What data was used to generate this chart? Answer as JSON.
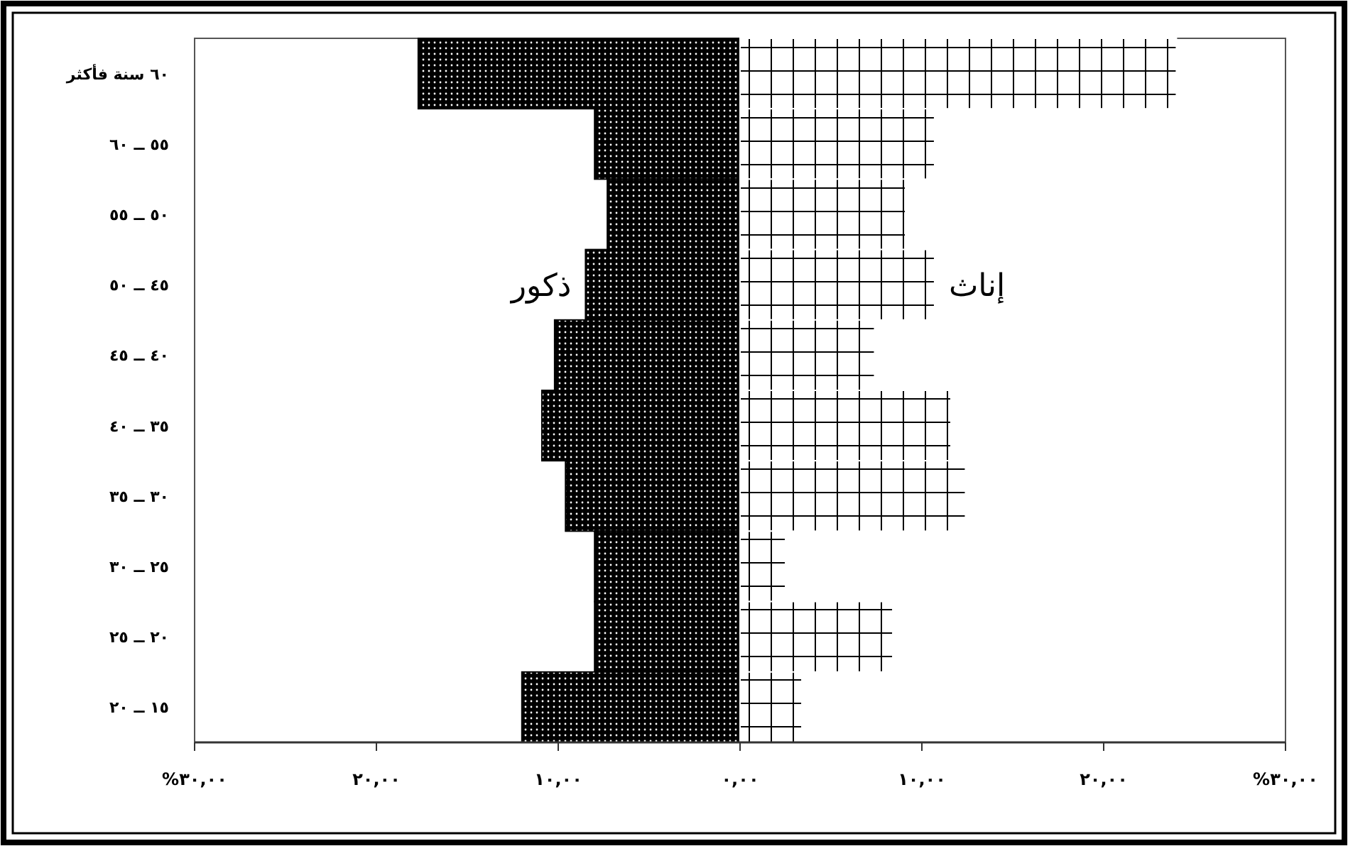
{
  "chart_data": {
    "type": "bar",
    "orientation": "horizontal",
    "stacked": true,
    "categories": [
      "٦٠ سنة فأكثر",
      "٥٥ ــ ٦٠",
      "٥٠ ــ ٥٥",
      "٤٥ ــ ٥٠",
      "٤٠ ــ ٤٥",
      "٣٥ ــ ٤٠",
      "٣٠ ــ ٣٥",
      "٢٥ ــ ٣٠",
      "٢٠ ــ ٢٥",
      "١٥ ــ ٢٠"
    ],
    "series": [
      {
        "name": "ذكور",
        "color": "#000000",
        "values": [
          -17.7,
          -8.0,
          -7.3,
          -8.5,
          -10.2,
          -10.9,
          -9.6,
          -8.0,
          -8.0,
          -12.0
        ]
      },
      {
        "name": "إناث",
        "color": "#ffffff",
        "values": [
          24.0,
          10.7,
          9.1,
          10.7,
          7.4,
          11.6,
          12.4,
          2.5,
          8.4,
          3.4
        ]
      }
    ],
    "xlim": [
      -30,
      30
    ],
    "xticks": [
      {
        "value": -30,
        "label": "%٣٠,٠٠"
      },
      {
        "value": -20,
        "label": "٢٠,٠٠"
      },
      {
        "value": -10,
        "label": "١٠,٠٠"
      },
      {
        "value": 0,
        "label": "٠,٠٠"
      },
      {
        "value": 10,
        "label": "١٠,٠٠"
      },
      {
        "value": 20,
        "label": "٢٠,٠٠"
      },
      {
        "value": 30,
        "label": "%٣٠,٠٠"
      }
    ],
    "grid": false,
    "legend": false
  }
}
